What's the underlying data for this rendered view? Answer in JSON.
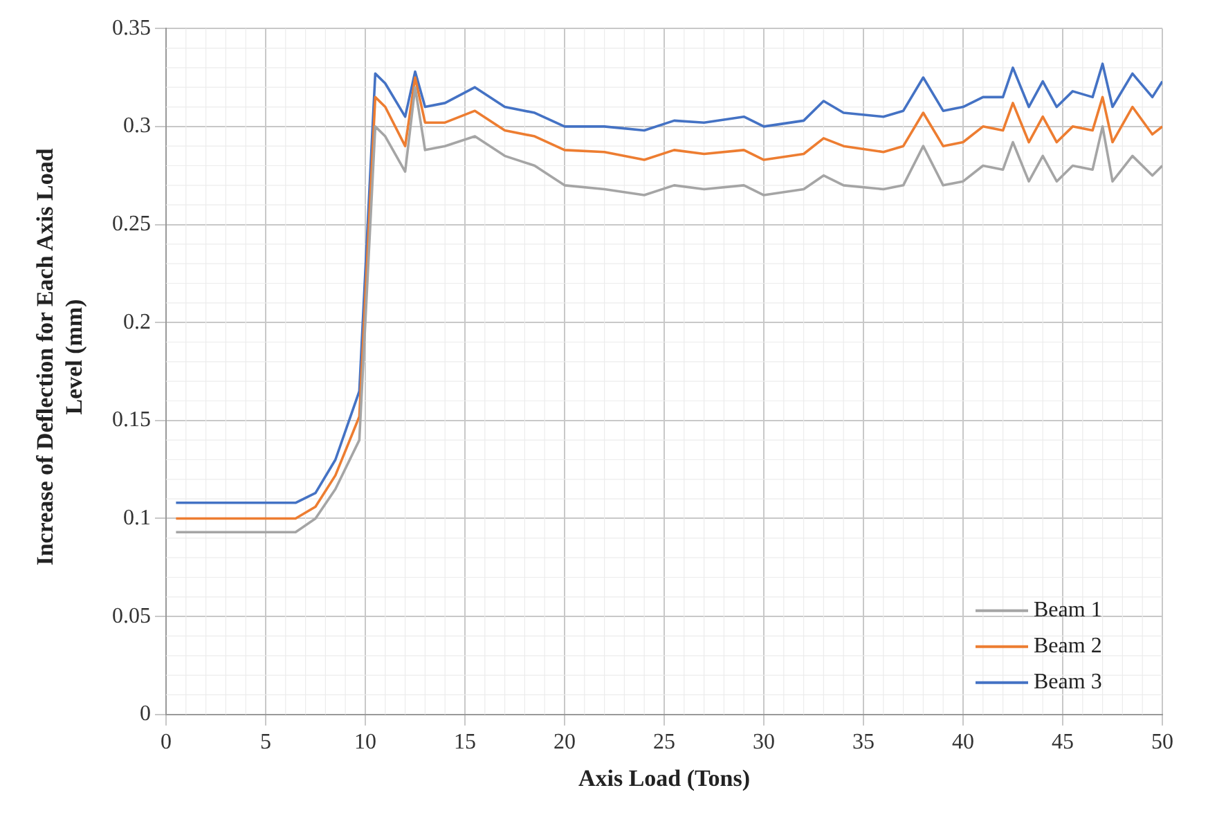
{
  "chart_data": {
    "type": "line",
    "xlabel": "Axis Load (Tons)",
    "ylabel": "Increase of Deflection for Each Axis Load Level (mm)",
    "x": [
      0.5,
      6.5,
      7.5,
      8.5,
      9.7,
      10.5,
      11,
      12,
      12.5,
      13,
      14,
      15.5,
      17,
      18.5,
      20,
      22,
      24,
      25.5,
      27,
      29,
      30,
      32,
      33,
      34,
      36,
      37,
      38,
      39,
      40,
      41,
      42,
      42.5,
      43.3,
      44,
      44.7,
      45.5,
      46.5,
      47,
      47.5,
      48.5,
      49.5,
      50
    ],
    "series": [
      {
        "name": "Beam 1",
        "color": "#a5a5a5",
        "values": [
          0.093,
          0.093,
          0.1,
          0.115,
          0.14,
          0.3,
          0.295,
          0.277,
          0.32,
          0.288,
          0.29,
          0.295,
          0.285,
          0.28,
          0.27,
          0.268,
          0.265,
          0.27,
          0.268,
          0.27,
          0.265,
          0.268,
          0.275,
          0.27,
          0.268,
          0.27,
          0.29,
          0.27,
          0.272,
          0.28,
          0.278,
          0.292,
          0.272,
          0.285,
          0.272,
          0.28,
          0.278,
          0.3,
          0.272,
          0.285,
          0.275,
          0.28
        ]
      },
      {
        "name": "Beam 2",
        "color": "#ed7d31",
        "values": [
          0.1,
          0.1,
          0.106,
          0.122,
          0.152,
          0.315,
          0.31,
          0.29,
          0.325,
          0.302,
          0.302,
          0.308,
          0.298,
          0.295,
          0.288,
          0.287,
          0.283,
          0.288,
          0.286,
          0.288,
          0.283,
          0.286,
          0.294,
          0.29,
          0.287,
          0.29,
          0.307,
          0.29,
          0.292,
          0.3,
          0.298,
          0.312,
          0.292,
          0.305,
          0.292,
          0.3,
          0.298,
          0.315,
          0.292,
          0.31,
          0.296,
          0.3
        ]
      },
      {
        "name": "Beam 3",
        "color": "#4472c4",
        "values": [
          0.108,
          0.108,
          0.113,
          0.13,
          0.165,
          0.327,
          0.322,
          0.305,
          0.328,
          0.31,
          0.312,
          0.32,
          0.31,
          0.307,
          0.3,
          0.3,
          0.298,
          0.303,
          0.302,
          0.305,
          0.3,
          0.303,
          0.313,
          0.307,
          0.305,
          0.308,
          0.325,
          0.308,
          0.31,
          0.315,
          0.315,
          0.33,
          0.31,
          0.323,
          0.31,
          0.318,
          0.315,
          0.332,
          0.31,
          0.327,
          0.315,
          0.323
        ]
      }
    ],
    "xlim": [
      0,
      50
    ],
    "xticks": [
      0,
      5,
      10,
      15,
      20,
      25,
      30,
      35,
      40,
      45,
      50
    ],
    "ylim": [
      0,
      0.35
    ],
    "yticks": [
      0,
      0.05,
      0.1,
      0.15,
      0.2,
      0.25,
      0.3,
      0.35
    ],
    "grid": true,
    "legend": "bottom right",
    "marker": "none",
    "line_style": "solid"
  }
}
